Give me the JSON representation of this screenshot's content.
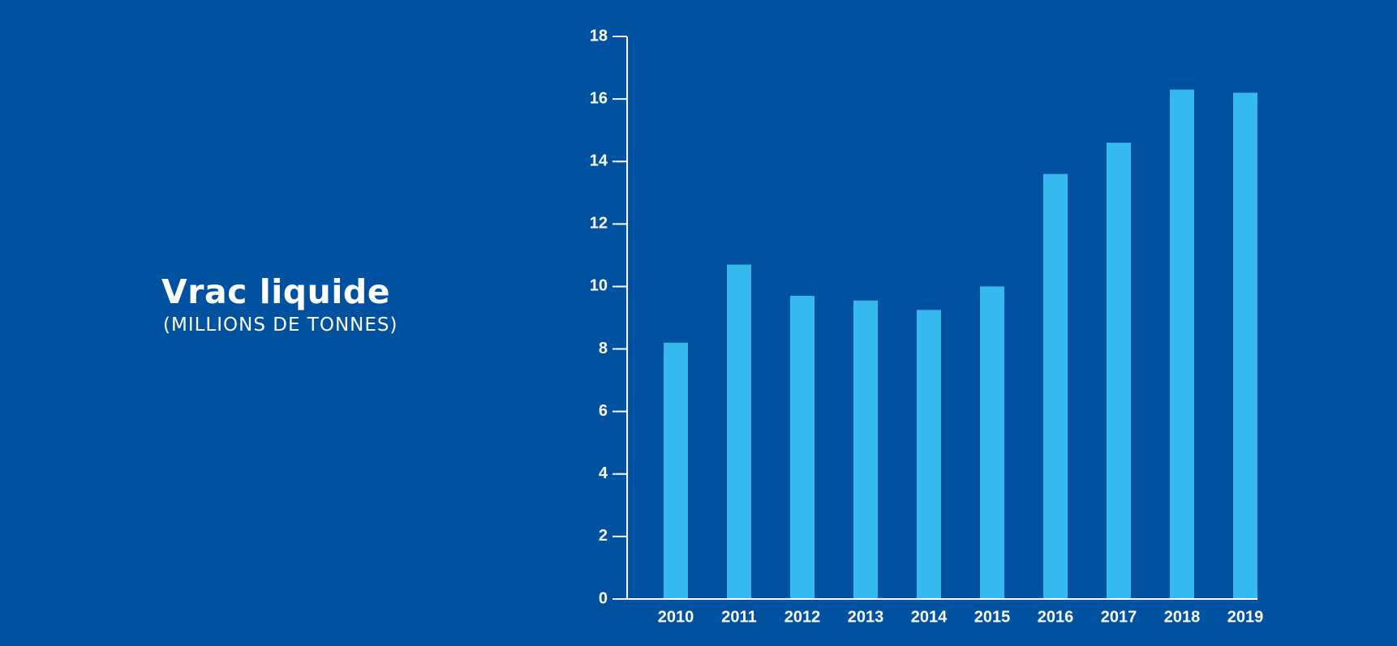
{
  "chart_data": {
    "type": "bar",
    "title": "Vrac liquide",
    "subtitle": "(MILLIONS DE TONNES)",
    "categories": [
      "2010",
      "2011",
      "2012",
      "2013",
      "2014",
      "2015",
      "2016",
      "2017",
      "2018",
      "2019"
    ],
    "values": [
      8.2,
      10.7,
      9.7,
      9.55,
      9.25,
      10.0,
      13.6,
      14.6,
      16.3,
      16.2
    ],
    "yticks": [
      "0",
      "2",
      "4",
      "6",
      "8",
      "10",
      "12",
      "14",
      "16",
      "18"
    ],
    "ylim": [
      0,
      18
    ],
    "xlabel": "",
    "ylabel": "",
    "grid": false,
    "colors": {
      "background": "#0052a0",
      "bar": "#36b9ee",
      "axis": "#ffffff",
      "text": "#ffffff"
    }
  }
}
